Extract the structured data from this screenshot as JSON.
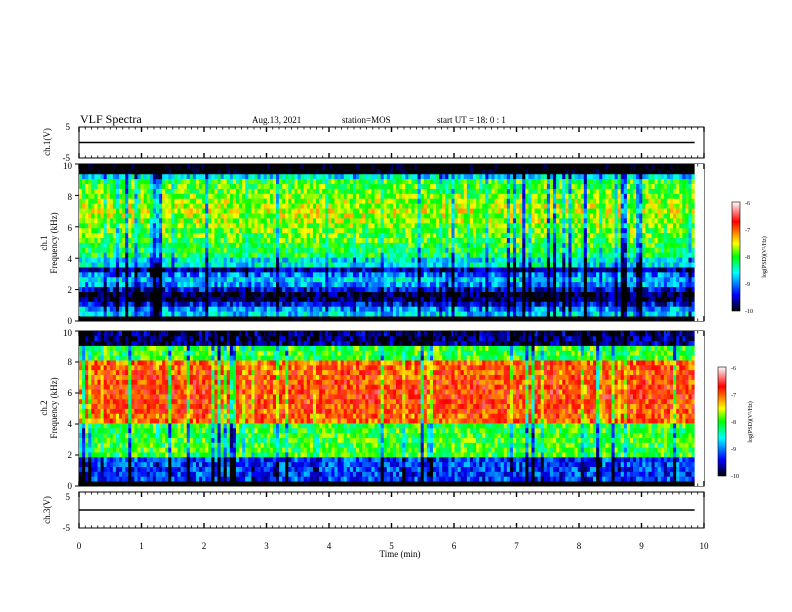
{
  "header": {
    "title": "VLF Spectra",
    "date": "Aug.13, 2021",
    "station": "station=MOS",
    "start": "start UT =  18: 0  : 1"
  },
  "colors": {
    "colormap": [
      "#000000",
      "#0000ff",
      "#00ffff",
      "#00ff00",
      "#ffff00",
      "#ff0000",
      "#ffffff"
    ]
  },
  "chart_data": [
    {
      "type": "line",
      "name": "ch1-waveform",
      "ylabel": "ch.1(V)",
      "xlim": [
        0,
        10
      ],
      "ylim": [
        -5,
        5
      ],
      "x_ticks": [
        "0",
        "1",
        "2",
        "3",
        "4",
        "5",
        "6",
        "7",
        "8",
        "9",
        "10"
      ],
      "y_ticks": [
        "5",
        "-5"
      ],
      "series": [
        {
          "x": [
            0,
            2.5,
            5,
            7.5,
            9.85
          ],
          "y": [
            0,
            0,
            0,
            0,
            0
          ]
        }
      ]
    },
    {
      "type": "heatmap",
      "name": "ch1-spectrogram",
      "ylabel": "ch.1\nFrequency (kHz)",
      "xlim": [
        0,
        10
      ],
      "ylim": [
        0,
        10
      ],
      "y_ticks": [
        "0",
        "2",
        "4",
        "6",
        "8",
        "10"
      ],
      "colorbar": {
        "label": "log(PSD)(V²/Hz)",
        "range": [
          -10,
          -6
        ],
        "ticks": [
          "-6",
          "-7",
          "-8",
          "-9",
          "-10"
        ]
      },
      "data_extent_x": [
        0,
        9.85
      ],
      "band_kHz": [
        4,
        9
      ],
      "mean_log_psd_band": -7.6
    },
    {
      "type": "heatmap",
      "name": "ch2-spectrogram",
      "ylabel": "ch.2\nFrequency (kHz)",
      "xlim": [
        0,
        10
      ],
      "ylim": [
        0,
        10
      ],
      "y_ticks": [
        "0",
        "2",
        "4",
        "6",
        "8",
        "10"
      ],
      "colorbar": {
        "label": "log(PSD)(V²/Hz)",
        "range": [
          -10,
          -6
        ],
        "ticks": [
          "-6",
          "-7",
          "-8",
          "-9",
          "-10"
        ]
      },
      "data_extent_x": [
        0,
        9.85
      ],
      "band_kHz": [
        4,
        8
      ],
      "mean_log_psd_band": -6.8
    },
    {
      "type": "line",
      "name": "ch3-waveform",
      "ylabel": "ch.3(V)",
      "xlabel": "Time (min)",
      "xlim": [
        0,
        10
      ],
      "ylim": [
        -5,
        5
      ],
      "x_ticks": [
        "0",
        "1",
        "2",
        "3",
        "4",
        "5",
        "6",
        "7",
        "8",
        "9",
        "10"
      ],
      "y_ticks": [
        "5",
        "-5"
      ],
      "series": [
        {
          "x": [
            0,
            2.5,
            5,
            7.5,
            9.85
          ],
          "y": [
            0,
            0,
            0,
            0,
            0
          ]
        }
      ]
    }
  ]
}
